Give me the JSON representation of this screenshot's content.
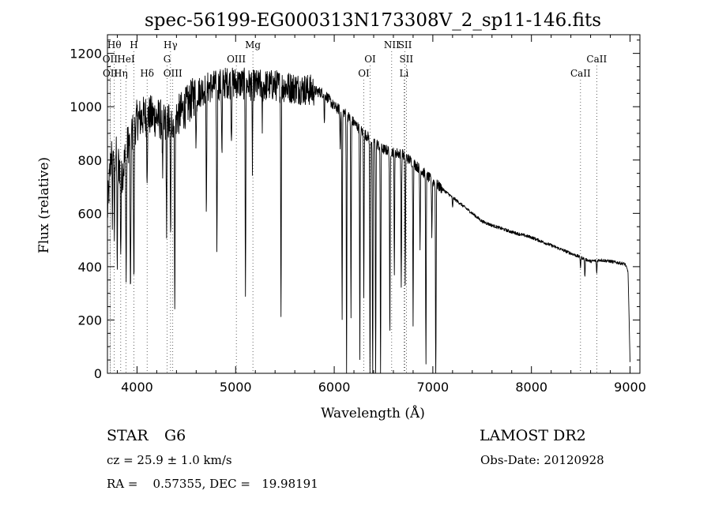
{
  "chart_data": {
    "type": "line",
    "title": "spec-56199-EG000313N173308V_2_sp11-146.fits",
    "xlabel": "Wavelength (Å)",
    "ylabel": "Flux (relative)",
    "xlim": [
      3700,
      9100
    ],
    "ylim": [
      0,
      1270
    ],
    "xticks": [
      4000,
      5000,
      6000,
      7000,
      8000,
      9000
    ],
    "yticks": [
      0,
      200,
      400,
      600,
      800,
      1000,
      1200
    ],
    "series": [
      {
        "name": "flux",
        "continuum_knots": {
          "x": [
            3700,
            3750,
            3800,
            3850,
            3900,
            3950,
            4000,
            4100,
            4200,
            4300,
            4400,
            4500,
            4600,
            4700,
            4800,
            4900,
            5000,
            5200,
            5400,
            5600,
            5800,
            5900,
            6000,
            6100,
            6200,
            6300,
            6400,
            6500,
            6600,
            6700,
            6800,
            7000,
            7200,
            7400,
            7500,
            7600,
            7800,
            8000,
            8200,
            8400,
            8600,
            8700,
            8800,
            8950,
            8980,
            9000
          ],
          "y": [
            600,
            900,
            800,
            750,
            850,
            900,
            950,
            970,
            960,
            940,
            960,
            1000,
            1050,
            1070,
            1080,
            1090,
            1090,
            1080,
            1080,
            1070,
            1060,
            1050,
            1000,
            980,
            940,
            900,
            870,
            840,
            830,
            820,
            790,
            720,
            660,
            600,
            570,
            555,
            530,
            510,
            480,
            450,
            420,
            425,
            420,
            410,
            380,
            40
          ]
        },
        "absorption_lines": [
          {
            "x": 3750,
            "depth": 300
          },
          {
            "x": 3770,
            "depth": 350
          },
          {
            "x": 3800,
            "depth": 400
          },
          {
            "x": 3835,
            "depth": 300
          },
          {
            "x": 3890,
            "depth": 480
          },
          {
            "x": 3934,
            "depth": 650
          },
          {
            "x": 3968,
            "depth": 600
          },
          {
            "x": 4102,
            "depth": 200
          },
          {
            "x": 4260,
            "depth": 250
          },
          {
            "x": 4300,
            "depth": 400
          },
          {
            "x": 4340,
            "depth": 450
          },
          {
            "x": 4383,
            "depth": 650
          },
          {
            "x": 4600,
            "depth": 180
          },
          {
            "x": 4703,
            "depth": 430
          },
          {
            "x": 4810,
            "depth": 600
          },
          {
            "x": 4861,
            "depth": 280
          },
          {
            "x": 4957,
            "depth": 200
          },
          {
            "x": 5100,
            "depth": 760
          },
          {
            "x": 5170,
            "depth": 300
          },
          {
            "x": 5270,
            "depth": 150
          },
          {
            "x": 5460,
            "depth": 870
          },
          {
            "x": 5900,
            "depth": 120
          },
          {
            "x": 6060,
            "depth": 150
          },
          {
            "x": 6080,
            "depth": 770
          },
          {
            "x": 6125,
            "depth": 980
          },
          {
            "x": 6170,
            "depth": 750
          },
          {
            "x": 6260,
            "depth": 870
          },
          {
            "x": 6300,
            "depth": 600
          },
          {
            "x": 6363,
            "depth": 930
          },
          {
            "x": 6390,
            "depth": 940
          },
          {
            "x": 6420,
            "depth": 920
          },
          {
            "x": 6470,
            "depth": 900
          },
          {
            "x": 6564,
            "depth": 730
          },
          {
            "x": 6610,
            "depth": 450
          },
          {
            "x": 6680,
            "depth": 500
          },
          {
            "x": 6720,
            "depth": 470
          },
          {
            "x": 6800,
            "depth": 600
          },
          {
            "x": 6870,
            "depth": 300
          },
          {
            "x": 6930,
            "depth": 720
          },
          {
            "x": 6990,
            "depth": 200
          },
          {
            "x": 7030,
            "depth": 820
          },
          {
            "x": 7200,
            "depth": 40
          },
          {
            "x": 8498,
            "depth": 40
          },
          {
            "x": 8542,
            "depth": 70
          },
          {
            "x": 8662,
            "depth": 50
          }
        ],
        "noise_amplitude_blue": 60,
        "noise_amplitude_red": 6
      }
    ],
    "line_markers": [
      {
        "label": "Hθ",
        "x": 3770,
        "row": 0
      },
      {
        "label": "OII",
        "x": 3727,
        "row": 1
      },
      {
        "label": "Hη",
        "x": 3835,
        "row": 2
      },
      {
        "label": "OII",
        "x": 3729,
        "row": 2
      },
      {
        "label": "H",
        "x": 3968,
        "row": 0
      },
      {
        "label": "HeI",
        "x": 3889,
        "row": 1
      },
      {
        "label": "Hδ",
        "x": 4102,
        "row": 2
      },
      {
        "label": "Hγ",
        "x": 4340,
        "row": 0
      },
      {
        "label": "G",
        "x": 4305,
        "row": 1
      },
      {
        "label": "OIII",
        "x": 4363,
        "row": 2
      },
      {
        "label": "Mg",
        "x": 5175,
        "row": 0
      },
      {
        "label": "OIII",
        "x": 5007,
        "row": 1
      },
      {
        "label": "OI",
        "x": 6364,
        "row": 1
      },
      {
        "label": "OI",
        "x": 6300,
        "row": 2
      },
      {
        "label": "NII",
        "x": 6583,
        "row": 0
      },
      {
        "label": "SII",
        "x": 6717,
        "row": 0
      },
      {
        "label": "SII",
        "x": 6731,
        "row": 1
      },
      {
        "label": "Li",
        "x": 6708,
        "row": 2
      },
      {
        "label": "CaII",
        "x": 8662,
        "row": 1
      },
      {
        "label": "CaII",
        "x": 8498,
        "row": 2
      }
    ],
    "grid": false,
    "legend": "none"
  },
  "info": {
    "class_label": "STAR",
    "subclass": "G6",
    "survey": "LAMOST DR2",
    "cz": "cz = 25.9 ± 1.0 km/s",
    "obs_date": "Obs-Date: 20120928",
    "coords": "RA =    0.57355, DEC =   19.98191"
  }
}
